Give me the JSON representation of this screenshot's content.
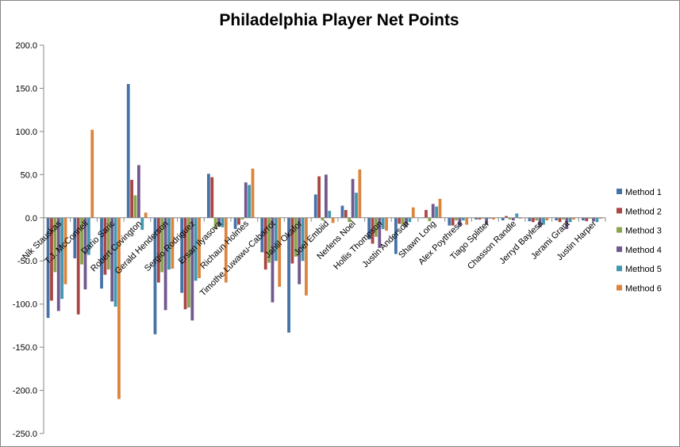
{
  "chart_data": {
    "type": "bar",
    "title": "Philadelphia Player Net Points",
    "xlabel": "",
    "ylabel": "",
    "ylim": [
      -250,
      200
    ],
    "yticks": [
      "200.0",
      "150.0",
      "100.0",
      "50.0",
      "0.0",
      "-50.0",
      "-100.0",
      "-150.0",
      "-200.0",
      "-250.0"
    ],
    "grid": false,
    "legend": "right",
    "categories": [
      "Nik Stauskas",
      "T.J. McConnell",
      "Dario Saric",
      "Robert Covington",
      "Gerald Henderson",
      "Sergio Rodriguez",
      "Ersan Ilyasova",
      "Richaun Holmes",
      "Timothe Luwawu-Cabarrot",
      "Jahlil Okafor",
      "Joel Embiid",
      "Nerlens Noel",
      "Hollis Thompson",
      "Justin Anderson",
      "Shawn Long",
      "Alex Poythress",
      "Tiago Splitter",
      "Chasson Randle",
      "Jerryd Bayless",
      "Jerami Grant",
      "Justin Harper"
    ],
    "series": [
      {
        "name": "Method 1",
        "color": "#4572A7",
        "values": [
          -116,
          -47,
          -82,
          155,
          -135,
          -87,
          51,
          -13,
          -40,
          -133,
          27,
          14,
          -25,
          -42,
          0,
          -9,
          -2,
          -3,
          -4,
          -3,
          -3
        ]
      },
      {
        "name": "Method 2",
        "color": "#AA4643",
        "values": [
          -96,
          -112,
          -66,
          44,
          -75,
          -106,
          47,
          -8,
          -60,
          -53,
          48,
          9,
          -30,
          -7,
          9,
          -9,
          -2,
          2,
          -5,
          -5,
          -4
        ]
      },
      {
        "name": "Method 3",
        "color": "#89A54E",
        "values": [
          -63,
          -54,
          -60,
          26,
          -63,
          -104,
          -13,
          -2,
          -52,
          -45,
          -3,
          -5,
          -22,
          -9,
          -4,
          -3,
          -1,
          -2,
          -3,
          -2,
          -1
        ]
      },
      {
        "name": "Method 4",
        "color": "#71588F",
        "values": [
          -108,
          -83,
          -97,
          61,
          -107,
          -119,
          -10,
          41,
          -98,
          -77,
          50,
          45,
          -35,
          -11,
          16,
          -10,
          -8,
          -3,
          -11,
          -13,
          -4
        ]
      },
      {
        "name": "Method 5",
        "color": "#4198AF",
        "values": [
          -94,
          -43,
          -103,
          -14,
          -60,
          -73,
          -11,
          38,
          -50,
          -50,
          8,
          29,
          -13,
          -5,
          13,
          -3,
          -1,
          5,
          -8,
          -5,
          -5
        ]
      },
      {
        "name": "Method 6",
        "color": "#DB843D",
        "values": [
          -77,
          102,
          -210,
          6,
          -59,
          -70,
          -75,
          57,
          -80,
          -90,
          -6,
          56,
          -15,
          12,
          22,
          -8,
          -2,
          -1,
          -3,
          -2,
          -1
        ]
      }
    ]
  }
}
